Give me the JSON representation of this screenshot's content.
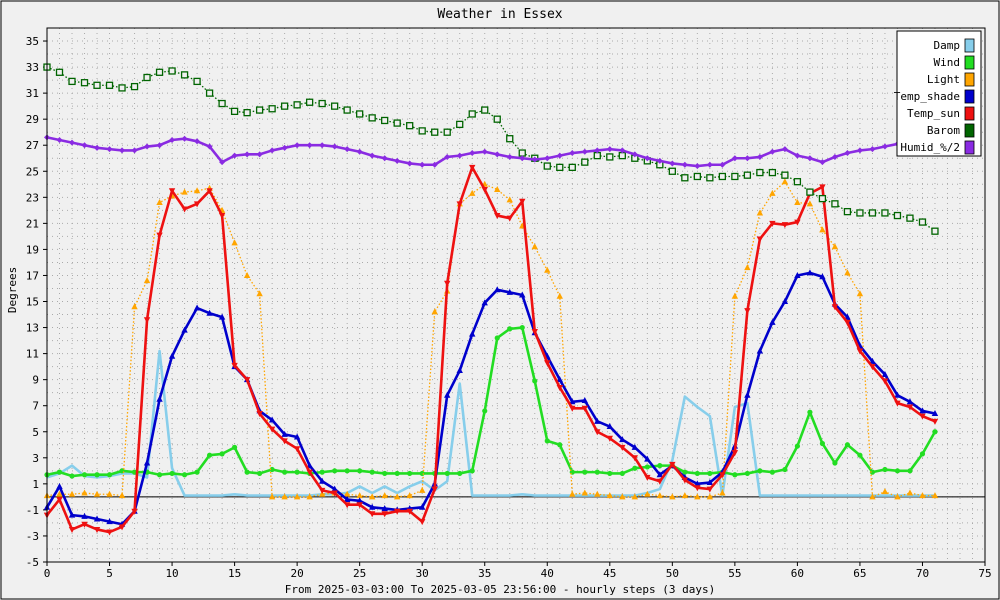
{
  "chart_data": {
    "type": "line",
    "title": "Weather in Essex",
    "xlabel": "From 2025-03-03:00 To 2025-03-05 23:56:00 - hourly steps (3 days)",
    "ylabel": "Degrees",
    "xlim": [
      0,
      75
    ],
    "ylim": [
      -5,
      36
    ],
    "xticks": [
      0,
      5,
      10,
      15,
      20,
      25,
      30,
      35,
      40,
      45,
      50,
      55,
      60,
      65,
      70,
      75
    ],
    "yticks": [
      -5,
      -3,
      -1,
      1,
      3,
      5,
      7,
      9,
      11,
      13,
      15,
      17,
      19,
      21,
      23,
      25,
      27,
      29,
      31,
      33,
      35
    ],
    "grid": true,
    "legend_position": "top-right",
    "x": [
      0,
      1,
      2,
      3,
      4,
      5,
      6,
      7,
      8,
      9,
      10,
      11,
      12,
      13,
      14,
      15,
      16,
      17,
      18,
      19,
      20,
      21,
      22,
      23,
      24,
      25,
      26,
      27,
      28,
      29,
      30,
      31,
      32,
      33,
      34,
      35,
      36,
      37,
      38,
      39,
      40,
      41,
      42,
      43,
      44,
      45,
      46,
      47,
      48,
      49,
      50,
      51,
      52,
      53,
      54,
      55,
      56,
      57,
      58,
      59,
      60,
      61,
      62,
      63,
      64,
      65,
      66,
      67,
      68,
      69,
      70,
      71
    ],
    "series": [
      {
        "name": "Damp",
        "color": "#87ceeb",
        "marker": "none",
        "style": "solid",
        "values": [
          1.5,
          1.8,
          2.4,
          1.6,
          1.5,
          1.6,
          1.8,
          1.8,
          1.5,
          11.2,
          2.2,
          0.1,
          0.1,
          0.1,
          0.1,
          0.2,
          0.1,
          0.1,
          0.1,
          0.1,
          0.1,
          0.1,
          0.2,
          0.2,
          0.3,
          0.8,
          0.3,
          0.8,
          0.3,
          0.8,
          1.2,
          0.5,
          1.2,
          8.7,
          0.1,
          0.1,
          0.1,
          0.1,
          0.2,
          0.1,
          0.1,
          0.1,
          0.1,
          0.1,
          0.1,
          0.1,
          0.1,
          0.1,
          0.3,
          0.6,
          2.8,
          7.7,
          6.9,
          6.2,
          0.1,
          6.9,
          7.2,
          0.1,
          0.1,
          0.1,
          0.1,
          0.1,
          0.1,
          0.1,
          0.1,
          0.1,
          0.1,
          0.1,
          0.1,
          0.1,
          0.1,
          0.1
        ]
      },
      {
        "name": "Wind",
        "color": "#22dd22",
        "marker": "circle",
        "style": "solid",
        "values": [
          1.7,
          1.9,
          1.6,
          1.7,
          1.7,
          1.7,
          2.0,
          1.9,
          1.9,
          1.7,
          1.8,
          1.7,
          1.9,
          3.2,
          3.3,
          3.8,
          1.9,
          1.8,
          2.1,
          1.9,
          1.9,
          1.8,
          1.9,
          2.0,
          2.0,
          2.0,
          1.9,
          1.8,
          1.8,
          1.8,
          1.8,
          1.8,
          1.8,
          1.8,
          2.0,
          6.6,
          12.2,
          12.9,
          13.0,
          8.9,
          4.3,
          4.0,
          1.9,
          1.9,
          1.9,
          1.8,
          1.8,
          2.2,
          2.3,
          2.4,
          2.4,
          1.9,
          1.8,
          1.8,
          1.9,
          1.7,
          1.8,
          2.0,
          1.9,
          2.1,
          3.9,
          6.5,
          4.1,
          2.6,
          4.0,
          3.2,
          1.9,
          2.1,
          2.0,
          2.0,
          3.3,
          5.0
        ]
      },
      {
        "name": "Light",
        "color": "#ffa500",
        "marker": "triangle",
        "style": "dotted",
        "values": [
          0.1,
          0.2,
          0.2,
          0.3,
          0.2,
          0.2,
          0.1,
          14.6,
          16.6,
          22.6,
          23.1,
          23.4,
          23.5,
          23.7,
          22.0,
          19.5,
          17.0,
          15.6,
          0.0,
          0.0,
          0.0,
          0.0,
          0.2,
          0.3,
          0.2,
          0.1,
          0.0,
          0.1,
          0.0,
          0.1,
          0.5,
          14.2,
          15.8,
          22.5,
          23.3,
          24.0,
          23.6,
          22.8,
          20.8,
          19.2,
          17.4,
          15.4,
          0.2,
          0.3,
          0.2,
          0.1,
          0.0,
          0.0,
          0.2,
          0.1,
          0.0,
          0.1,
          0.0,
          0.0,
          0.3,
          15.4,
          17.6,
          21.8,
          23.3,
          24.2,
          22.6,
          22.5,
          20.5,
          19.2,
          17.2,
          15.6,
          0.0,
          0.4,
          0.0,
          0.3,
          0.1,
          0.1
        ]
      },
      {
        "name": "Temp_shade",
        "color": "#0000cc",
        "marker": "triangle",
        "style": "solid",
        "values": [
          -0.8,
          0.8,
          -1.4,
          -1.5,
          -1.7,
          -1.9,
          -2.1,
          -1.1,
          2.6,
          7.5,
          10.8,
          12.8,
          14.5,
          14.1,
          13.8,
          10.0,
          9.0,
          6.6,
          5.9,
          4.8,
          4.6,
          2.4,
          1.2,
          0.6,
          -0.2,
          -0.3,
          -0.8,
          -0.9,
          -1.0,
          -0.9,
          -0.8,
          1.0,
          7.8,
          9.7,
          12.5,
          14.9,
          15.9,
          15.7,
          15.5,
          12.6,
          10.8,
          9.0,
          7.3,
          7.4,
          5.8,
          5.4,
          4.4,
          3.8,
          2.9,
          1.7,
          2.4,
          1.5,
          1.0,
          1.1,
          1.9,
          3.9,
          7.8,
          11.2,
          13.4,
          15.0,
          17.0,
          17.2,
          16.9,
          14.8,
          13.8,
          11.6,
          10.4,
          9.4,
          7.8,
          7.3,
          6.6,
          6.4
        ]
      },
      {
        "name": "Temp_sun",
        "color": "#ee1111",
        "marker": "triangle-down",
        "style": "solid",
        "values": [
          -1.4,
          -0.2,
          -2.5,
          -2.1,
          -2.5,
          -2.7,
          -2.3,
          -1.1,
          13.6,
          20.1,
          23.5,
          22.1,
          22.5,
          23.5,
          21.6,
          10.1,
          9.0,
          6.4,
          5.2,
          4.3,
          3.7,
          1.9,
          0.5,
          0.3,
          -0.6,
          -0.6,
          -1.3,
          -1.3,
          -1.1,
          -1.1,
          -1.9,
          0.6,
          16.4,
          22.5,
          25.3,
          23.6,
          21.6,
          21.4,
          22.7,
          12.7,
          10.3,
          8.4,
          6.8,
          6.8,
          5.0,
          4.5,
          3.8,
          3.0,
          1.5,
          1.2,
          2.5,
          1.3,
          0.7,
          0.6,
          1.7,
          3.4,
          14.3,
          19.8,
          21.0,
          20.9,
          21.1,
          23.3,
          23.8,
          14.6,
          13.4,
          11.2,
          10.0,
          8.9,
          7.2,
          6.9,
          6.2,
          5.8
        ]
      },
      {
        "name": "Barom",
        "color": "#006400",
        "marker": "square",
        "style": "dotted",
        "values": [
          33.0,
          32.6,
          31.9,
          31.8,
          31.6,
          31.6,
          31.4,
          31.5,
          32.2,
          32.6,
          32.7,
          32.4,
          31.9,
          31.0,
          30.2,
          29.6,
          29.5,
          29.7,
          29.8,
          30.0,
          30.1,
          30.3,
          30.2,
          30.0,
          29.7,
          29.4,
          29.1,
          28.9,
          28.7,
          28.5,
          28.1,
          28.0,
          28.0,
          28.6,
          29.4,
          29.7,
          29.0,
          27.5,
          26.4,
          26.0,
          25.4,
          25.3,
          25.3,
          25.7,
          26.2,
          26.1,
          26.2,
          26.0,
          25.8,
          25.5,
          25.0,
          24.5,
          24.6,
          24.5,
          24.6,
          24.6,
          24.7,
          24.9,
          24.9,
          24.7,
          24.2,
          23.4,
          22.9,
          22.5,
          21.9,
          21.8,
          21.8,
          21.8,
          21.6,
          21.4,
          21.1,
          20.4
        ]
      },
      {
        "name": "Humid_%/2",
        "color": "#8a2be2",
        "marker": "diamond",
        "style": "solid",
        "values": [
          27.6,
          27.4,
          27.2,
          27.0,
          26.8,
          26.7,
          26.6,
          26.6,
          26.9,
          27.0,
          27.4,
          27.5,
          27.3,
          26.9,
          25.7,
          26.2,
          26.3,
          26.3,
          26.6,
          26.8,
          27.0,
          27.0,
          27.0,
          26.9,
          26.7,
          26.5,
          26.2,
          26.0,
          25.8,
          25.6,
          25.5,
          25.5,
          26.1,
          26.2,
          26.4,
          26.5,
          26.3,
          26.1,
          26.0,
          25.9,
          26.0,
          26.2,
          26.4,
          26.5,
          26.6,
          26.7,
          26.6,
          26.3,
          26.0,
          25.8,
          25.6,
          25.5,
          25.4,
          25.5,
          25.5,
          26.0,
          26.0,
          26.1,
          26.5,
          26.7,
          26.2,
          26.0,
          25.7,
          26.1,
          26.4,
          26.6,
          26.7,
          26.9,
          27.1,
          27.4,
          27.3,
          27.4
        ]
      }
    ]
  }
}
